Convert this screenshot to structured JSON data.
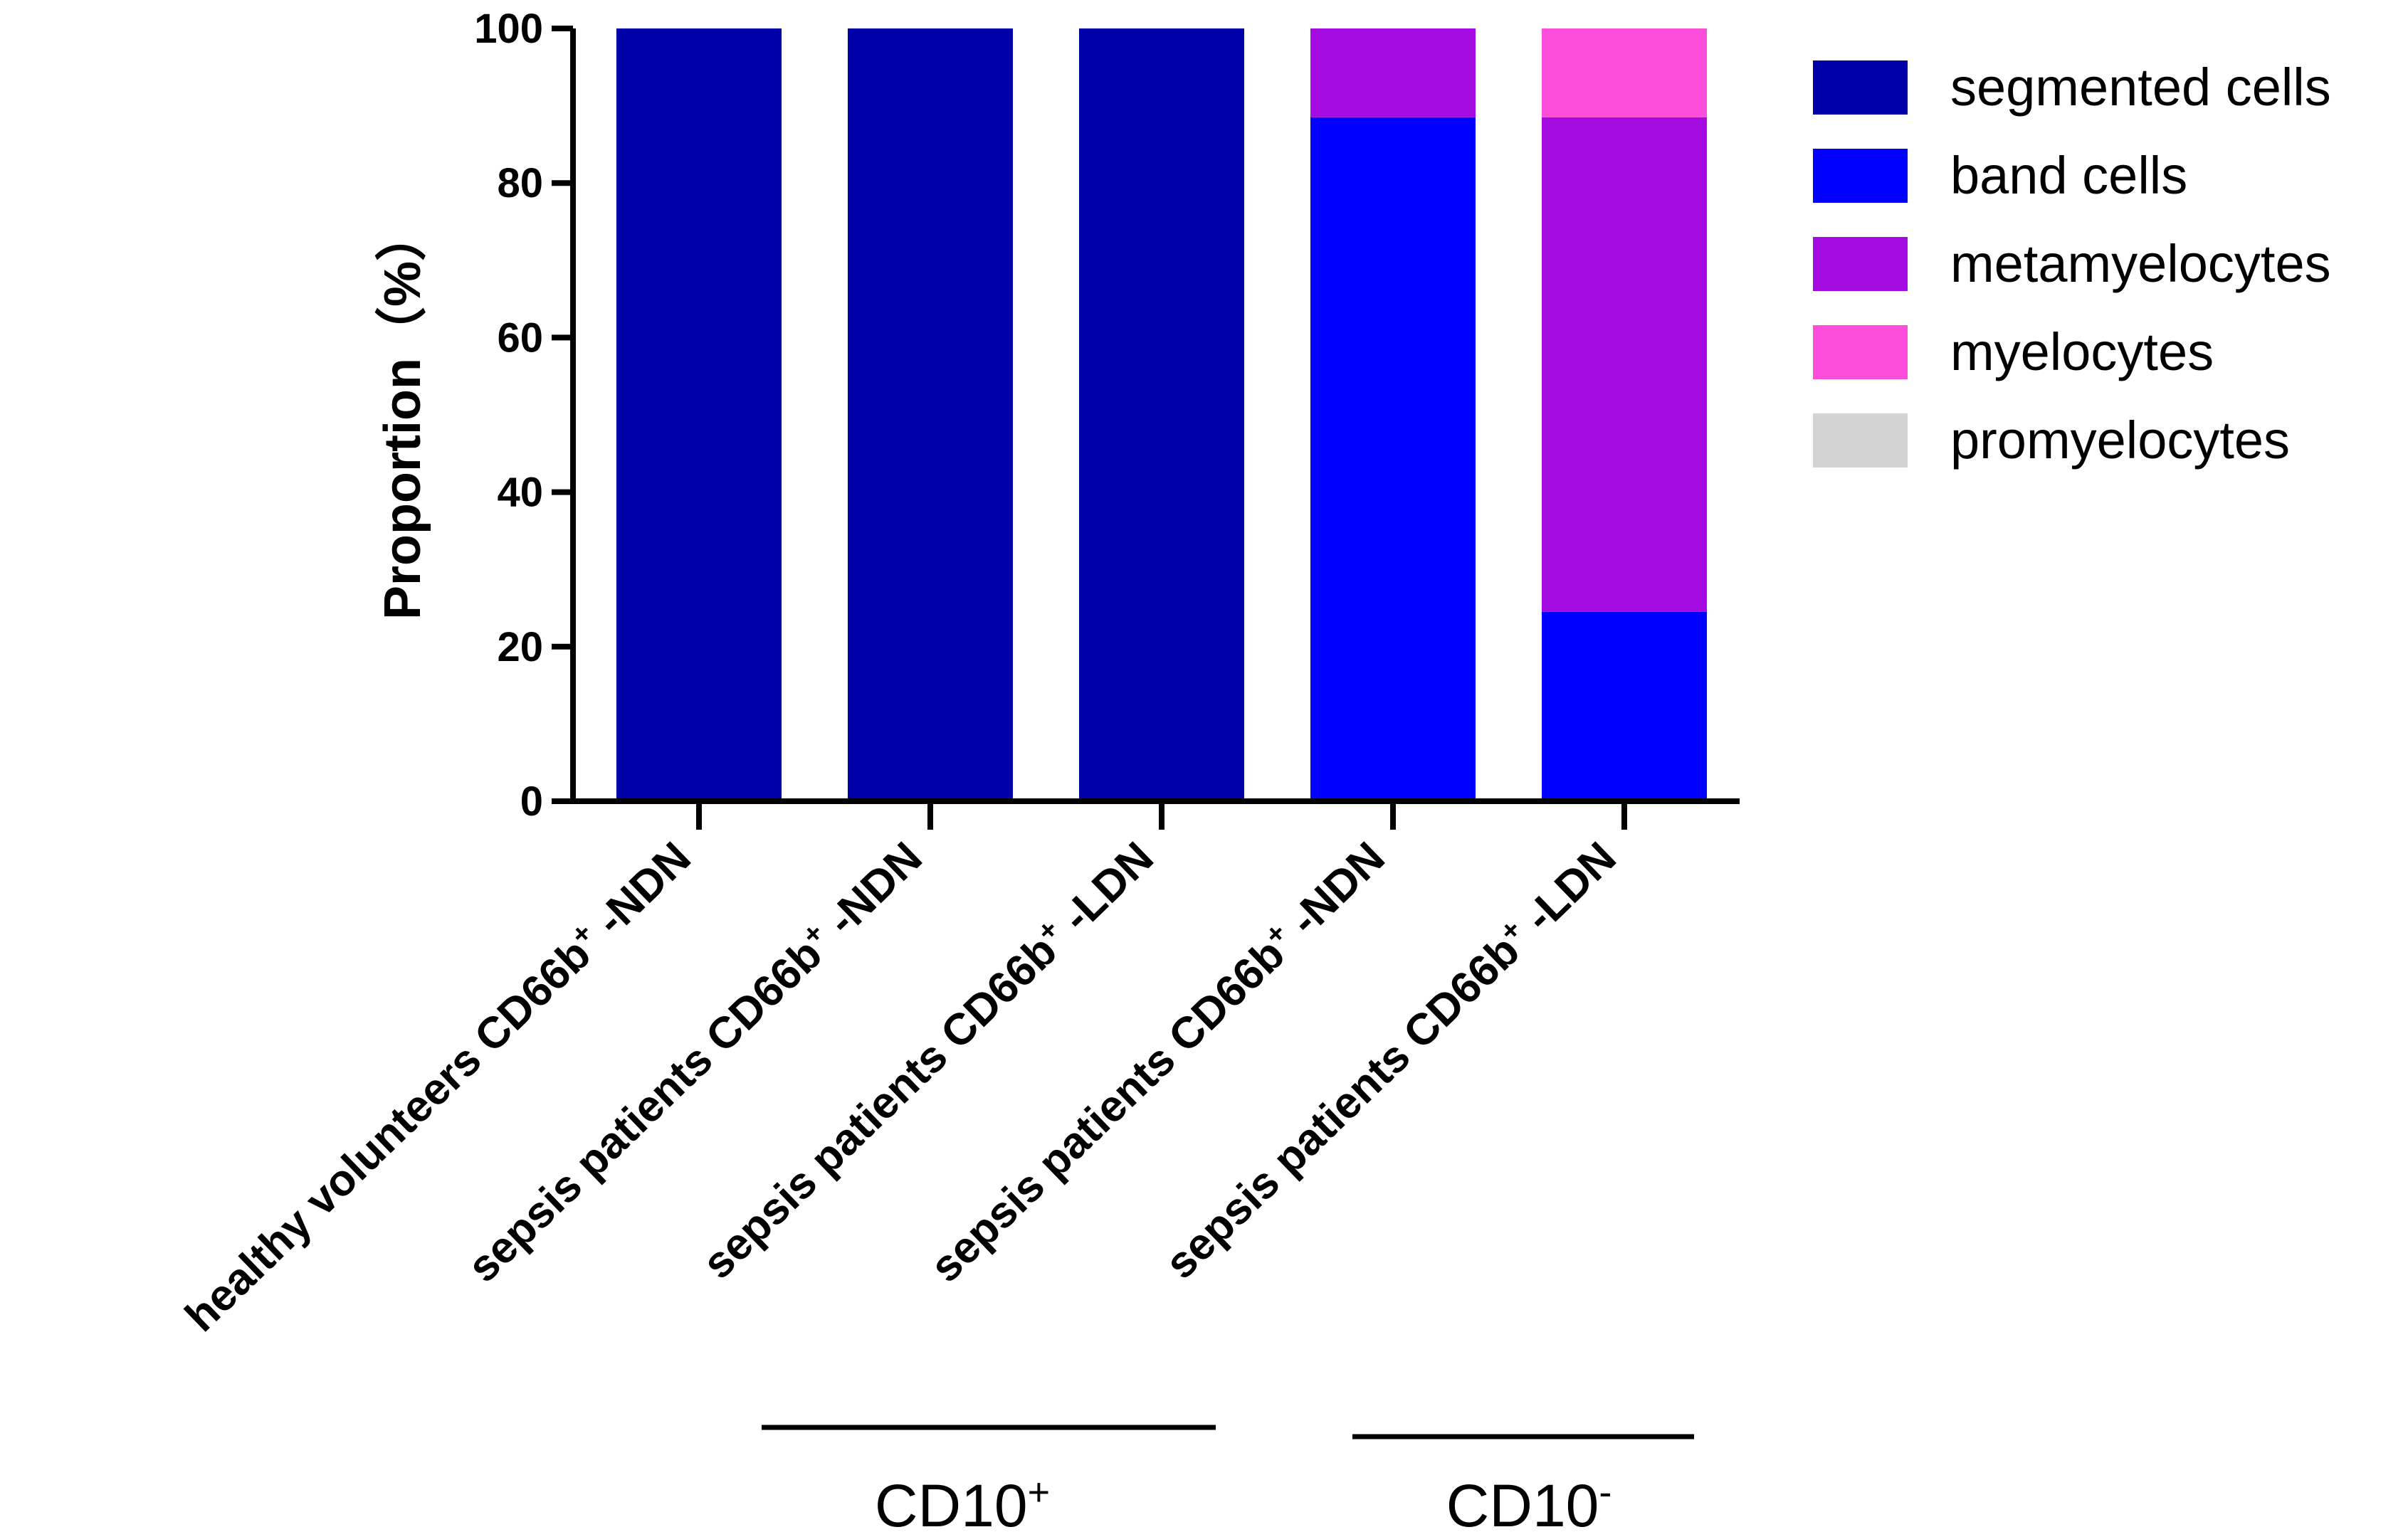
{
  "chart_data": {
    "type": "bar",
    "stacked": true,
    "title": "",
    "xlabel": "",
    "ylabel": "Proportion（%）",
    "ylim": [
      0,
      100
    ],
    "yticks": [
      0,
      20,
      40,
      60,
      80,
      100
    ],
    "legend_position": "right",
    "categories": [
      {
        "main": "healthy volunteers CD66b",
        "sup": "+",
        "suffix": " -NDN"
      },
      {
        "main": "sepsis patients CD66b",
        "sup": "+",
        "suffix": " -NDN"
      },
      {
        "main": "sepsis patients CD66b",
        "sup": "+",
        "suffix": " -LDN"
      },
      {
        "main": "sepsis patients CD66b",
        "sup": "+",
        "suffix": " -NDN"
      },
      {
        "main": "sepsis patients CD66b",
        "sup": "+",
        "suffix": " -LDN"
      }
    ],
    "series": [
      {
        "name": "segmented cells",
        "color": "#0000A8",
        "values": [
          100,
          100,
          100,
          0,
          0
        ]
      },
      {
        "name": "band cells",
        "color": "#0000FF",
        "values": [
          0,
          0,
          0,
          88.5,
          24.5
        ]
      },
      {
        "name": "metamyelocytes",
        "color": "#A30BE0",
        "values": [
          0,
          0,
          0,
          11.5,
          64
        ]
      },
      {
        "name": "myelocytes",
        "color": "#FC4EDB",
        "values": [
          0,
          0,
          0,
          0,
          11.5
        ]
      },
      {
        "name": "promyelocytes",
        "color": "#D3D3D3",
        "values": [
          0,
          0,
          0,
          0,
          0
        ]
      }
    ],
    "groups": [
      {
        "label": "CD10",
        "sup": "+",
        "categories": [
          1,
          2
        ]
      },
      {
        "label": "CD10",
        "sup": "-",
        "categories": [
          3,
          4
        ]
      }
    ]
  }
}
